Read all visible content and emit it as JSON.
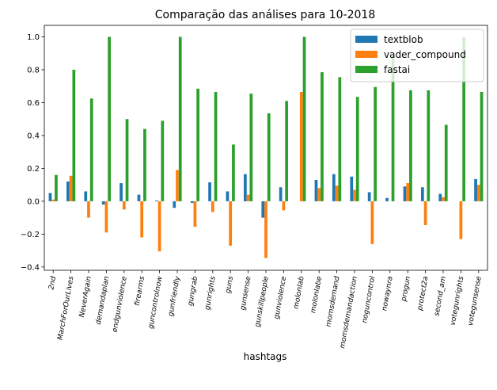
{
  "chart_data": {
    "type": "bar",
    "title": "Comparação das análises para 10-2018",
    "xlabel": "hashtags",
    "ylabel": "",
    "ylim": [
      -0.42,
      1.07
    ],
    "yticks": [
      -0.4,
      -0.2,
      0.0,
      0.2,
      0.4,
      0.6,
      0.8,
      1.0
    ],
    "ytick_labels": [
      "−0.4",
      "−0.2",
      "0.0",
      "0.2",
      "0.4",
      "0.6",
      "0.8",
      "1.0"
    ],
    "legend_position": "top-right",
    "grid": false,
    "categories": [
      "2nd",
      "MarchForOurLives",
      "NeverAgain",
      "demandaplan",
      "endgunviolence",
      "firearms",
      "guncontrolnow",
      "gunfriendly",
      "gungrab",
      "gunrights",
      "guns",
      "gunsense",
      "gunskillpeople",
      "gunviolence",
      "molonlab",
      "molonlabe",
      "momsdemand",
      "momsdemandaction",
      "noguncontrol",
      "nowaynra",
      "progun",
      "protect2a",
      "second_am",
      "votegunrights",
      "votegunsense"
    ],
    "series": [
      {
        "name": "textblob",
        "color": "#1f77b4",
        "values": [
          0.05,
          0.12,
          0.06,
          -0.02,
          0.11,
          0.04,
          0.005,
          -0.04,
          -0.01,
          0.115,
          0.06,
          0.165,
          -0.1,
          0.085,
          0.0,
          0.13,
          0.165,
          0.15,
          0.055,
          0.02,
          0.09,
          0.085,
          0.045,
          0.0,
          0.135
        ]
      },
      {
        "name": "vader_compound",
        "color": "#ff7f0e",
        "values": [
          0.01,
          0.155,
          -0.1,
          -0.19,
          -0.05,
          -0.22,
          -0.305,
          0.19,
          -0.155,
          -0.065,
          -0.27,
          0.04,
          -0.345,
          -0.055,
          0.665,
          0.08,
          0.095,
          0.07,
          -0.26,
          0.0,
          0.11,
          -0.145,
          0.025,
          -0.23,
          0.1
        ]
      },
      {
        "name": "fastai",
        "color": "#2ca02c",
        "values": [
          0.16,
          0.8,
          0.625,
          1.0,
          0.5,
          0.44,
          0.49,
          1.0,
          0.685,
          0.665,
          0.345,
          0.655,
          0.535,
          0.61,
          1.0,
          0.785,
          0.755,
          0.635,
          0.695,
          0.875,
          0.675,
          0.675,
          0.465,
          1.0,
          0.665
        ]
      }
    ]
  }
}
